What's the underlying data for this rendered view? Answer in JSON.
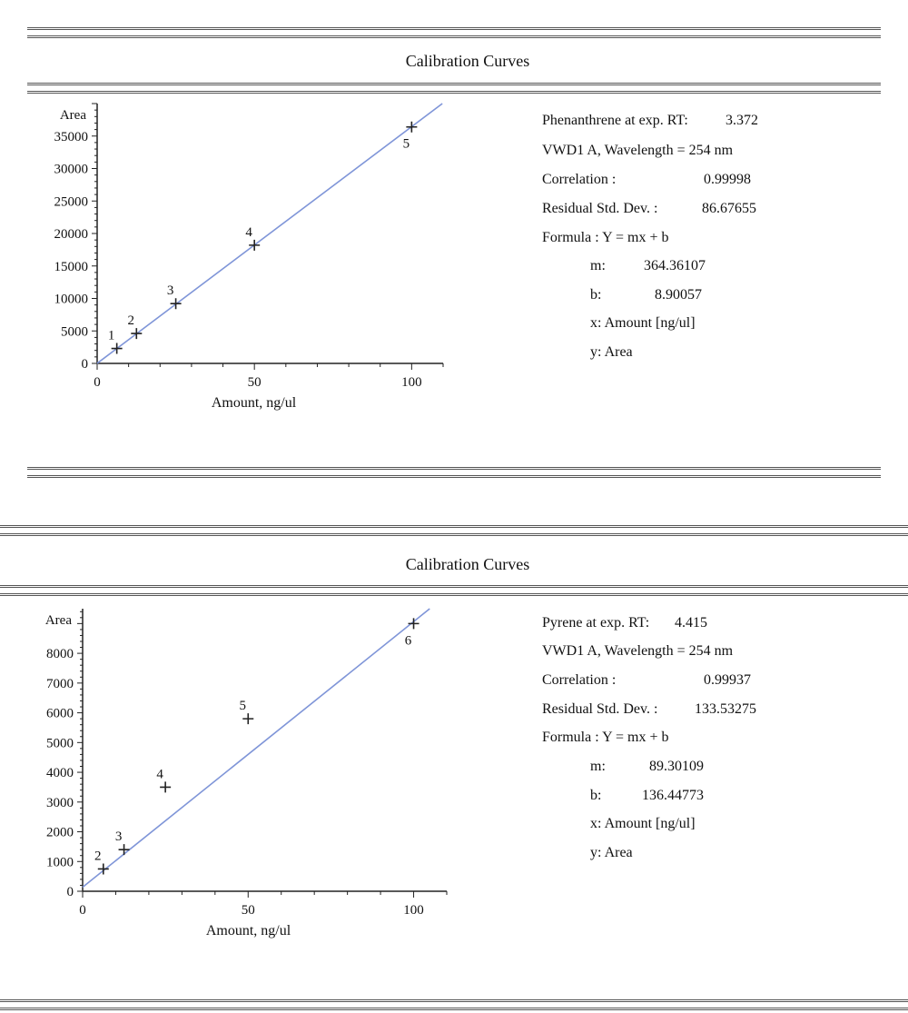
{
  "colors": {
    "fit_line": "#7f95d8",
    "axis": "#222222",
    "text": "#111111"
  },
  "panels": [
    {
      "title": "Calibration Curves",
      "info": {
        "compound_label": "Phenanthrene at exp. RT:",
        "rt": "3.372",
        "detector": "VWD1 A, Wavelength = 254 nm",
        "correlation_label": "Correlation :",
        "correlation": "0.99998",
        "residual_label": "Residual Std. Dev. :",
        "residual": "86.67655",
        "formula": "Formula : Y = mx + b",
        "m_label": "m:",
        "m": "364.36107",
        "b_label": "b:",
        "b": "8.90057",
        "x_def": "x: Amount [ng/ul]",
        "y_def": "y: Area"
      },
      "chart_data": {
        "type": "scatter",
        "title": "",
        "xlabel": "Amount, ng/ul",
        "ylabel": "Area",
        "xlim": [
          0,
          110
        ],
        "ylim": [
          0,
          40000
        ],
        "x_ticks": [
          0,
          50,
          100
        ],
        "y_ticks": [
          0,
          5000,
          10000,
          15000,
          20000,
          25000,
          30000,
          35000
        ],
        "series": [
          {
            "x": [
              6.25,
              12.5,
              25,
              50,
              100
            ],
            "y": [
              2300,
              4600,
              9200,
              18200,
              36400
            ],
            "point_labels": [
              "1",
              "2",
              "3",
              "4",
              "5"
            ],
            "label_pos": [
              "above",
              "above",
              "above",
              "above",
              "below"
            ]
          }
        ],
        "fit": {
          "m": 364.36107,
          "b": 8.90057,
          "x_range": [
            0,
            110
          ]
        }
      }
    },
    {
      "title": "Calibration Curves",
      "info": {
        "compound_label": "Pyrene at exp. RT:",
        "rt": "4.415",
        "detector": "VWD1 A, Wavelength = 254 nm",
        "correlation_label": "Correlation :",
        "correlation": "0.99937",
        "residual_label": "Residual Std. Dev. :",
        "residual": "133.53275",
        "formula": "Formula : Y = mx + b",
        "m_label": "m:",
        "m": "89.30109",
        "b_label": "b:",
        "b": "136.44773",
        "x_def": "x: Amount [ng/ul]",
        "y_def": "y: Area"
      },
      "chart_data": {
        "type": "scatter",
        "title": "",
        "xlabel": "Amount, ng/ul",
        "ylabel": "Area",
        "xlim": [
          0,
          110
        ],
        "ylim": [
          0,
          9500
        ],
        "x_ticks": [
          0,
          50,
          100
        ],
        "y_ticks": [
          0,
          1000,
          2000,
          3000,
          4000,
          5000,
          6000,
          7000,
          8000
        ],
        "series": [
          {
            "x": [
              6.25,
              12.5,
              25,
              50,
              100
            ],
            "y": [
              750,
              1400,
              3500,
              5800,
              9000
            ],
            "point_labels": [
              "2",
              "3",
              "4",
              "5",
              "6"
            ],
            "label_pos": [
              "above",
              "above",
              "above",
              "above",
              "below"
            ]
          }
        ],
        "fit": {
          "m": 89.30109,
          "b": 136.44773,
          "x_range": [
            0,
            110
          ]
        }
      }
    }
  ]
}
